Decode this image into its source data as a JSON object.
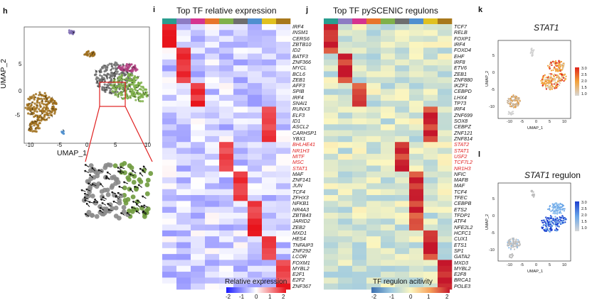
{
  "panels": {
    "h": {
      "letter": "h",
      "xlabel": "UMAP_1",
      "ylabel": "UMAP_2",
      "xticks": [
        "-10",
        "-5",
        "0",
        "5",
        "10"
      ],
      "yticks": [
        "5",
        "0",
        "-5"
      ]
    },
    "i": {
      "letter": "i",
      "title": "Top TF relative expression",
      "legend_title": "Relative expression",
      "legend_ticks": [
        "-2",
        "-1",
        "0",
        "1",
        "2"
      ],
      "genes": [
        "IRF4",
        "INSM1",
        "CERS6",
        "ZBTB10",
        "ID2",
        "BATF3",
        "ZNF366",
        "MYCL",
        "BCL6",
        "ZEB1",
        "AFF3",
        "SPIB",
        "IRF4",
        "SNAI1",
        "RUNX3",
        "ELF3",
        "ID1",
        "ASCL2",
        "CARHSP1",
        "YBX1",
        "BHLHE41",
        "NR1H3",
        "MITF",
        "MSC",
        "STAT1",
        "MAF",
        "ZNF141",
        "JUN",
        "TCF4",
        "ZFHX3",
        "NFKB1",
        "NR4A3",
        "ZBTB43",
        "JARID2",
        "ZEB2",
        "MXD1",
        "HES4",
        "TNFAIP3",
        "ZNF292",
        "LCOR",
        "FOXM1",
        "MYBL2",
        "E2F1",
        "E2F2",
        "ZNF367"
      ],
      "highlighted": [
        "BHLHE41",
        "NR1H3",
        "MITF",
        "MSC",
        "STAT1"
      ]
    },
    "j": {
      "letter": "j",
      "title": "Top TF pySCENIC regulons",
      "legend_title": "TF regulon acitivity",
      "legend_ticks": [
        "-2",
        "-1",
        "0",
        "1",
        "2"
      ],
      "genes": [
        "TCF7",
        "RELB",
        "FOXP1",
        "IRF4",
        "FOXD4",
        "EHF",
        "IRF8",
        "ETV6",
        "ZEB1",
        "ZNF880",
        "IKZF1",
        "CEBPD",
        "LHX4",
        "TP73",
        "IRF4",
        "ZNF699",
        "SOX8",
        "CEBPZ",
        "ZNF121",
        "ZNF814",
        "STAT2",
        "STAT1",
        "USF2",
        "TCF7L2",
        "NR1H3",
        "NFIC",
        "MAFB",
        "MAF",
        "TCF4",
        "TFEC",
        "CEBPB",
        "ETS2",
        "TFDP1",
        "ATF4",
        "NFE2L2",
        "HCFC1",
        "CUX1",
        "ETS1",
        "SP1",
        "GATA2",
        "MXD3",
        "MYBL2",
        "E2F8",
        "BRCA1",
        "POLE3"
      ],
      "highlighted": [
        "STAT2",
        "STAT1",
        "USF2",
        "TCF7L2",
        "NR1H3"
      ]
    },
    "k": {
      "letter": "k",
      "title": "STAT1",
      "xlabel": "UMAP_1",
      "ylabel": "UMAP_2",
      "xticks": [
        "-10",
        "-5",
        "0",
        "5",
        "10"
      ],
      "yticks": [
        "5",
        "0",
        "-5",
        "-10"
      ],
      "legend": [
        "3.0",
        "2.5",
        "2.0",
        "1.5",
        "1.0"
      ]
    },
    "l": {
      "letter": "l",
      "title": "STAT1",
      "title_suffix": "regulon",
      "xlabel": "UMAP_1",
      "ylabel": "UMAP_2",
      "xticks": [
        "-10",
        "-5",
        "0",
        "5",
        "10"
      ],
      "yticks": [
        "5",
        "0",
        "-5",
        "-10"
      ],
      "legend": [
        "3.0",
        "2.5",
        "2.0",
        "1.5",
        "1.0"
      ]
    }
  },
  "colors": {
    "cluster_bar": [
      "#2a9d8f",
      "#8d7cc3",
      "#d6338f",
      "#e8742a",
      "#7fb04a",
      "#6e6e6e",
      "#4f8fcf",
      "#e0c020",
      "#a8781c"
    ],
    "heat_red": "#e8141c",
    "heat_blue": "#1a1aff",
    "spectral_red": "#c5162b",
    "spectral_blue": "#3a6fb0"
  }
}
